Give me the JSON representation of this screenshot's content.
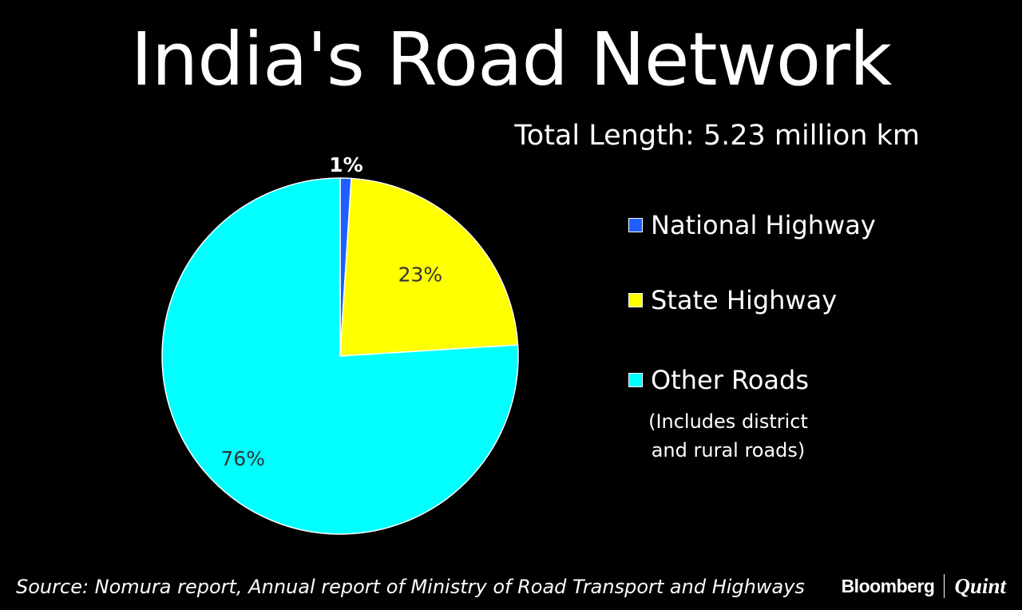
{
  "title": "India's Road Network",
  "subtitle": "Total Length: 5.23 million km",
  "chart_data": {
    "type": "pie",
    "title": "India's Road Network",
    "subtitle": "Total Length: 5.23 million km",
    "legend_position": "right",
    "slices": [
      {
        "name": "National Highway",
        "value": 1,
        "label": "1%",
        "color": "#1f5fff",
        "label_color": "#ffffff"
      },
      {
        "name": "State Highway",
        "value": 23,
        "label": "23%",
        "color": "#ffff00",
        "label_color": "#333333"
      },
      {
        "name": "Other Roads",
        "value": 76,
        "label": "76%",
        "color": "#00ffff",
        "label_color": "#333333"
      }
    ],
    "legend_note": [
      "(Includes district",
      "and rural roads)"
    ]
  },
  "source": "Source: Nomura report, Annual report of Ministry of Road Transport and Highways",
  "brand": {
    "name": "Bloomberg",
    "sub": "Quint"
  }
}
